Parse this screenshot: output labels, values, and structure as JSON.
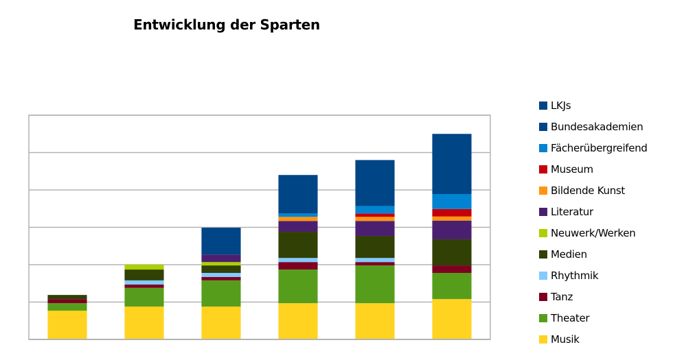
{
  "chart_data": {
    "type": "bar",
    "stacked": true,
    "title": "Entwicklung der Sparten",
    "xlabel": "",
    "ylabel": "",
    "categories": [
      "",
      "",
      "",
      "",
      "",
      ""
    ],
    "ylim": [
      0,
      6
    ],
    "yticks_visible": false,
    "grid": true,
    "legend_position": "right",
    "units_note": "values in gridline steps (no axis tick labels shown)",
    "series": [
      {
        "name": "Musik",
        "color": "#ffd320",
        "values": [
          0.77,
          0.88,
          0.88,
          0.97,
          0.97,
          1.08
        ]
      },
      {
        "name": "Theater",
        "color": "#579d1c",
        "values": [
          0.2,
          0.5,
          0.7,
          0.9,
          1.01,
          0.7
        ]
      },
      {
        "name": "Tanz",
        "color": "#7e0021",
        "values": [
          0.11,
          0.09,
          0.09,
          0.2,
          0.09,
          0.2
        ]
      },
      {
        "name": "Rhythmik",
        "color": "#83caff",
        "values": [
          0,
          0.11,
          0.11,
          0.11,
          0.11,
          0
        ]
      },
      {
        "name": "Medien",
        "color": "#314004",
        "values": [
          0.11,
          0.29,
          0.2,
          0.7,
          0.59,
          0.7
        ]
      },
      {
        "name": "Neuwerk/Werken",
        "color": "#aecf00",
        "values": [
          0,
          0.13,
          0.09,
          0,
          0,
          0
        ]
      },
      {
        "name": "Literatur",
        "color": "#4b1f6f",
        "values": [
          0,
          0,
          0.2,
          0.29,
          0.4,
          0.5
        ]
      },
      {
        "name": "Bildende Kunst",
        "color": "#ff950e",
        "values": [
          0,
          0,
          0,
          0.11,
          0.11,
          0.11
        ]
      },
      {
        "name": "Museum",
        "color": "#c5000b",
        "values": [
          0,
          0,
          0,
          0,
          0.09,
          0.2
        ]
      },
      {
        "name": "Fächerübergreifend",
        "color": "#0084d1",
        "values": [
          0,
          0,
          0,
          0.09,
          0.2,
          0.4
        ]
      },
      {
        "name": "Bundesakademien",
        "color": "#004586",
        "values": [
          0,
          0,
          0.72,
          1.03,
          1.23,
          1.61
        ]
      },
      {
        "name": "LKJs",
        "color": "#004586",
        "values": [
          0,
          0,
          0,
          0,
          0,
          0
        ]
      }
    ],
    "legend_order": [
      "LKJs",
      "Bundesakademien",
      "Fächerübergreifend",
      "Museum",
      "Bildende Kunst",
      "Literatur",
      "Neuwerk/Werken",
      "Medien",
      "Rhythmik",
      "Tanz",
      "Theater",
      "Musik"
    ]
  }
}
